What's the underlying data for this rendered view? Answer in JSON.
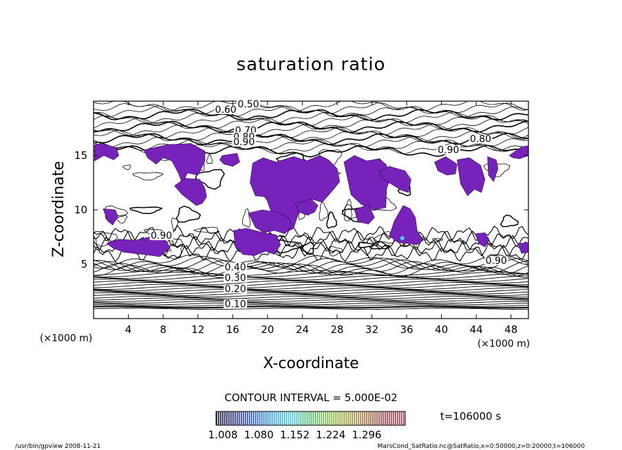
{
  "chart_data": {
    "type": "contour",
    "title": "saturation ratio",
    "xlabel": "X-coordinate",
    "ylabel": "Z-coordinate",
    "x_unit": "(×1000 m)",
    "y_unit": "(×1000 m)",
    "xlim": [
      0,
      50
    ],
    "ylim": [
      0,
      20
    ],
    "x_ticks": [
      4,
      8,
      12,
      16,
      20,
      24,
      28,
      32,
      36,
      40,
      44,
      48
    ],
    "y_ticks": [
      5,
      10,
      15
    ],
    "contour_interval_text": "CONTOUR INTERVAL = 5.000E-02",
    "time_text": "t=106000 s",
    "contour_labels": [
      {
        "text": "0.50",
        "x": 17.8,
        "z": 19.5
      },
      {
        "text": "0.60",
        "x": 15.2,
        "z": 19.0
      },
      {
        "text": "0.70",
        "x": 17.5,
        "z": 17.1
      },
      {
        "text": "0.80",
        "x": 17.3,
        "z": 16.5
      },
      {
        "text": "0.90",
        "x": 17.3,
        "z": 16.0
      },
      {
        "text": "0.80",
        "x": 44.5,
        "z": 16.3
      },
      {
        "text": "0.90",
        "x": 40.8,
        "z": 15.3
      },
      {
        "text": "0.90",
        "x": 7.8,
        "z": 7.4
      },
      {
        "text": "0.40",
        "x": 16.3,
        "z": 4.5
      },
      {
        "text": "0.30",
        "x": 16.3,
        "z": 3.5
      },
      {
        "text": "0.20",
        "x": 16.3,
        "z": 2.5
      },
      {
        "text": "0.10",
        "x": 16.3,
        "z": 1.1
      },
      {
        "text": "0.90",
        "x": 46.3,
        "z": 5.1
      }
    ],
    "colorbar": {
      "min": 1.008,
      "max": 1.296,
      "tick_labels": [
        "1.008",
        "1.080",
        "1.152",
        "1.224",
        "1.296"
      ],
      "colors": [
        "#0b0b3a",
        "#18208f",
        "#2458d8",
        "#2b9ee0",
        "#45c7d6",
        "#4fb86a",
        "#7cc03c",
        "#a3a136",
        "#b06a3a",
        "#b0343e",
        "#c23a50"
      ]
    },
    "supersaturated_color": "#7722bb",
    "supersaturated_regions": [
      {
        "xs": [
          0.1,
          1.0,
          2.6,
          2.9,
          2.3,
          1.2,
          0.1
        ],
        "zs": [
          16.0,
          16.1,
          15.7,
          15.0,
          14.6,
          15.0,
          14.5
        ]
      },
      {
        "xs": [
          5.8,
          8.5,
          11.2,
          12.8,
          12.8,
          12.0,
          10.8,
          10.2,
          9.8,
          9.0,
          8.0,
          7.2,
          6.2,
          5.8
        ],
        "zs": [
          15.5,
          16.0,
          16.1,
          15.4,
          14.5,
          13.2,
          13.4,
          12.4,
          13.3,
          14.5,
          14.8,
          14.2,
          14.8,
          15.5
        ]
      },
      {
        "xs": [
          14.8,
          16.5,
          16.8,
          16.0,
          15.0,
          14.5
        ],
        "zs": [
          15.0,
          15.2,
          14.4,
          14.0,
          14.2,
          14.6
        ]
      },
      {
        "xs": [
          9.3,
          10.5,
          12.2,
          12.8,
          13.0,
          12.5,
          11.8,
          11.0,
          10.2,
          9.3
        ],
        "zs": [
          12.2,
          12.9,
          12.8,
          12.0,
          11.2,
          10.6,
          10.4,
          10.9,
          11.4,
          12.2
        ]
      },
      {
        "xs": [
          18.3,
          19.5,
          21.0,
          23.0,
          24.5,
          26.0,
          27.0,
          28.0,
          28.3,
          27.5,
          26.3,
          25.0,
          24.2,
          23.6,
          23.0,
          22.3,
          21.0,
          19.8,
          18.6,
          18.0,
          18.3
        ],
        "zs": [
          14.3,
          14.8,
          14.4,
          14.9,
          14.5,
          15.0,
          14.6,
          13.8,
          12.6,
          11.8,
          10.7,
          11.0,
          10.2,
          9.8,
          8.3,
          8.0,
          8.5,
          11.2,
          11.3,
          12.5,
          14.3
        ]
      },
      {
        "xs": [
          17.8,
          19.4,
          21.0,
          22.4,
          22.8,
          22.0,
          20.8,
          19.6,
          18.6,
          17.8
        ],
        "zs": [
          9.7,
          10.0,
          9.8,
          9.3,
          8.6,
          7.8,
          8.1,
          7.9,
          8.4,
          9.7
        ]
      },
      {
        "xs": [
          23.2,
          25.0,
          25.8,
          25.4,
          24.6,
          23.6,
          23.2
        ],
        "zs": [
          10.6,
          11.0,
          10.4,
          9.8,
          9.5,
          9.8,
          10.6
        ]
      },
      {
        "xs": [
          28.8,
          30.0,
          31.4,
          32.8,
          33.6,
          34.2,
          33.7,
          33.6,
          32.2,
          30.8,
          29.6,
          28.8
        ],
        "zs": [
          14.4,
          15.0,
          14.5,
          14.7,
          14.2,
          13.0,
          12.0,
          10.2,
          10.0,
          10.5,
          11.4,
          14.4
        ]
      },
      {
        "xs": [
          32.8,
          34.0,
          35.8,
          36.5,
          36.2,
          35.4,
          34.4,
          33.4,
          32.8
        ],
        "zs": [
          13.5,
          14.0,
          13.6,
          12.8,
          11.6,
          11.8,
          12.3,
          12.8,
          13.5
        ]
      },
      {
        "xs": [
          30.0,
          31.6,
          32.3,
          31.6,
          30.4,
          30.0
        ],
        "zs": [
          10.0,
          10.5,
          9.3,
          8.7,
          8.9,
          10.0
        ]
      },
      {
        "xs": [
          34.6,
          35.6,
          36.4,
          37.0,
          37.2,
          37.9,
          37.2,
          36.3,
          35.0,
          34.0,
          34.6
        ],
        "zs": [
          9.0,
          10.4,
          10.1,
          9.3,
          8.1,
          7.2,
          6.8,
          6.9,
          7.0,
          7.6,
          9.0
        ]
      },
      {
        "xs": [
          39.2,
          40.5,
          41.8,
          41.6,
          40.6,
          39.6,
          39.2
        ],
        "zs": [
          14.4,
          14.9,
          14.2,
          13.3,
          13.2,
          13.6,
          14.4
        ]
      },
      {
        "xs": [
          41.8,
          43.2,
          44.5,
          45.0,
          44.6,
          43.8,
          43.0,
          42.2,
          41.8
        ],
        "zs": [
          14.6,
          14.8,
          14.1,
          12.8,
          11.6,
          11.9,
          11.3,
          12.4,
          14.6
        ]
      },
      {
        "xs": [
          45.3,
          46.3,
          46.5,
          46.0,
          45.4,
          45.3
        ],
        "zs": [
          14.9,
          14.6,
          13.8,
          12.6,
          13.2,
          14.9
        ]
      },
      {
        "xs": [
          47.8,
          49.2,
          50.0,
          50.0,
          49.0,
          48.2,
          47.8
        ],
        "zs": [
          15.0,
          15.8,
          15.9,
          15.0,
          14.7,
          14.8,
          15.0
        ]
      },
      {
        "xs": [
          1.1,
          2.5,
          2.8,
          2.2,
          1.6,
          1.1
        ],
        "zs": [
          10.1,
          10.0,
          9.4,
          8.6,
          9.0,
          10.1
        ]
      },
      {
        "xs": [
          1.5,
          2.9,
          4.8,
          7.0,
          8.4,
          8.8,
          7.6,
          5.8,
          3.5,
          2.2,
          1.5
        ],
        "zs": [
          6.9,
          7.3,
          7.2,
          7.6,
          7.1,
          6.5,
          5.7,
          5.9,
          6.1,
          6.5,
          6.9
        ]
      },
      {
        "xs": [
          16.1,
          17.6,
          19.5,
          21.0,
          21.5,
          20.8,
          19.8,
          18.5,
          17.2,
          16.3,
          16.1
        ],
        "zs": [
          8.1,
          8.3,
          7.9,
          7.7,
          6.8,
          5.9,
          6.2,
          5.8,
          5.9,
          6.6,
          8.1
        ]
      },
      {
        "xs": [
          43.9,
          45.0,
          45.5,
          45.0,
          44.3,
          43.9
        ],
        "zs": [
          7.8,
          7.9,
          7.2,
          6.6,
          6.9,
          7.8
        ]
      },
      {
        "xs": [
          48.8,
          50.0,
          50.0,
          49.2,
          48.8
        ],
        "zs": [
          6.9,
          7.0,
          6.1,
          6.0,
          6.9
        ]
      }
    ],
    "supersaturated_spot": {
      "x": 35.5,
      "z": 7.4,
      "color": "#44d4e6"
    }
  },
  "footer": {
    "left": "/usr/bin/gpview   2008-11-21",
    "right": "MarsCond_SatRatio.nc@SatRatio,x=0:50000,z=0:20000,t=106000"
  }
}
